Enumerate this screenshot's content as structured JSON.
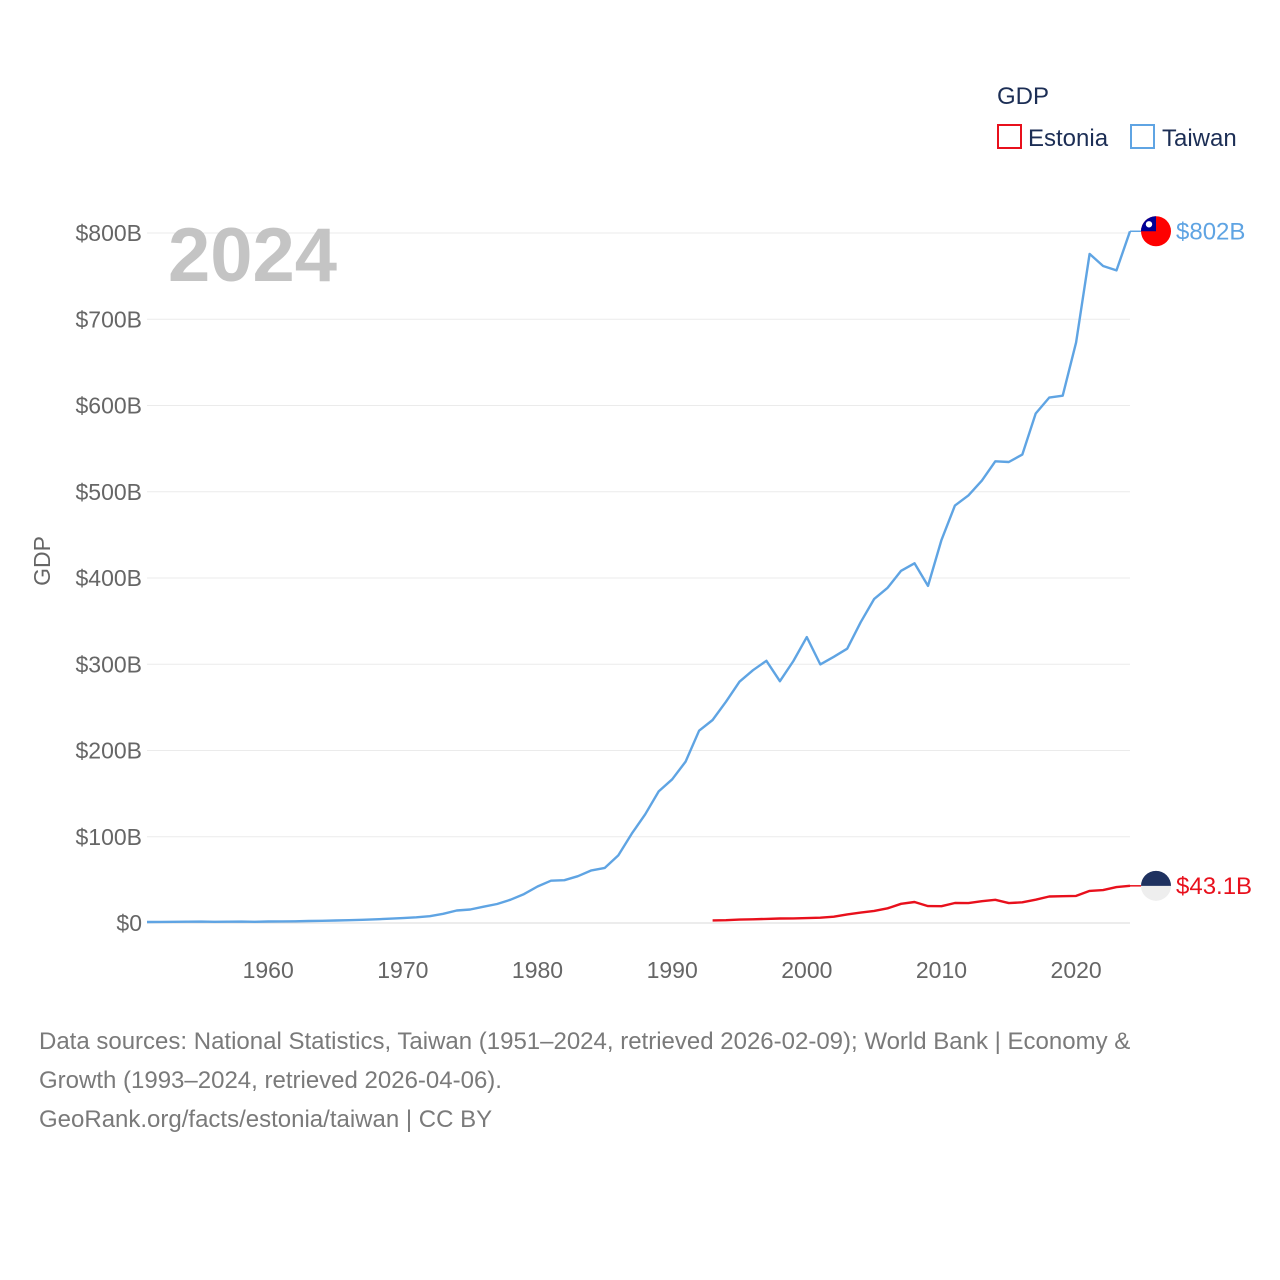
{
  "chart_data": {
    "type": "line",
    "ylabel": "GDP",
    "year_label": "2024",
    "ylim": [
      0,
      800000000000
    ],
    "xlim": [
      1951,
      2024
    ],
    "y_ticks": [
      {
        "value": 0,
        "label": "$0"
      },
      {
        "value": 100000000000,
        "label": "$100B"
      },
      {
        "value": 200000000000,
        "label": "$200B"
      },
      {
        "value": 300000000000,
        "label": "$300B"
      },
      {
        "value": 400000000000,
        "label": "$400B"
      },
      {
        "value": 500000000000,
        "label": "$500B"
      },
      {
        "value": 600000000000,
        "label": "$600B"
      },
      {
        "value": 700000000000,
        "label": "$700B"
      },
      {
        "value": 800000000000,
        "label": "$800B"
      }
    ],
    "x_ticks": [
      {
        "value": 1960,
        "label": "1960"
      },
      {
        "value": 1970,
        "label": "1970"
      },
      {
        "value": 1980,
        "label": "1980"
      },
      {
        "value": 1990,
        "label": "1990"
      },
      {
        "value": 2000,
        "label": "2000"
      },
      {
        "value": 2010,
        "label": "2010"
      },
      {
        "value": 2020,
        "label": "2020"
      }
    ],
    "legend": {
      "title": "GDP",
      "position": "top-right"
    },
    "series": [
      {
        "name": "Taiwan",
        "color": "#5fa4e3",
        "end_label": "$802B",
        "flag": "taiwan-flag-icon",
        "x": [
          1951,
          1952,
          1953,
          1954,
          1955,
          1956,
          1957,
          1958,
          1959,
          1960,
          1961,
          1962,
          1963,
          1964,
          1965,
          1966,
          1967,
          1968,
          1969,
          1970,
          1971,
          1972,
          1973,
          1974,
          1975,
          1976,
          1977,
          1978,
          1979,
          1980,
          1981,
          1982,
          1983,
          1984,
          1985,
          1986,
          1987,
          1988,
          1989,
          1990,
          1991,
          1992,
          1993,
          1994,
          1995,
          1996,
          1997,
          1998,
          1999,
          2000,
          2001,
          2002,
          2003,
          2004,
          2005,
          2006,
          2007,
          2008,
          2009,
          2010,
          2011,
          2012,
          2013,
          2014,
          2015,
          2016,
          2017,
          2018,
          2019,
          2020,
          2021,
          2022,
          2023,
          2024
        ],
        "values": [
          1.2,
          1.3,
          1.4,
          1.5,
          1.6,
          1.4,
          1.5,
          1.6,
          1.4,
          1.7,
          1.8,
          2.0,
          2.3,
          2.6,
          2.9,
          3.2,
          3.7,
          4.3,
          5.0,
          5.7,
          6.6,
          7.9,
          10.7,
          14.5,
          15.7,
          18.9,
          22.0,
          27.0,
          33.5,
          42.3,
          49.1,
          49.6,
          54.3,
          61.0,
          63.9,
          78.4,
          103.6,
          126.0,
          152.6,
          166.6,
          187.1,
          222.9,
          235.4,
          256.6,
          279.8,
          293.1,
          304.0,
          280.3,
          303.8,
          331.5,
          299.8,
          308.6,
          318.0,
          348.7,
          375.8,
          388.6,
          408.3,
          417.0,
          390.8,
          444.2,
          484.0,
          495.8,
          512.9,
          535.3,
          534.5,
          543.1,
          590.7,
          609.2,
          611.4,
          673.2,
          775.8,
          761.7,
          756.6,
          802.0
        ]
      },
      {
        "name": "Estonia",
        "color": "#e8101c",
        "end_label": "$43.1B",
        "flag": "estonia-flag-icon",
        "x": [
          1993,
          1994,
          1995,
          1996,
          1997,
          1998,
          1999,
          2000,
          2001,
          2002,
          2003,
          2004,
          2005,
          2006,
          2007,
          2008,
          2009,
          2010,
          2011,
          2012,
          2013,
          2014,
          2015,
          2016,
          2017,
          2018,
          2019,
          2020,
          2021,
          2022,
          2023,
          2024
        ],
        "values": [
          3.0,
          3.3,
          3.9,
          4.3,
          4.7,
          5.2,
          5.3,
          5.7,
          6.2,
          7.3,
          10.0,
          12.0,
          14.0,
          17.0,
          22.3,
          24.3,
          19.6,
          19.5,
          23.2,
          23.1,
          25.3,
          26.9,
          23.1,
          24.0,
          27.0,
          30.7,
          31.1,
          31.4,
          37.2,
          38.1,
          41.6,
          43.1
        ]
      }
    ]
  },
  "source": {
    "line1": "Data sources: National Statistics, Taiwan (1951–2024, retrieved 2026-02-09); World Bank | Economy &",
    "line2": "Growth (1993–2024, retrieved 2026-04-06).",
    "line3": "GeoRank.org/facts/estonia/taiwan | CC BY"
  }
}
